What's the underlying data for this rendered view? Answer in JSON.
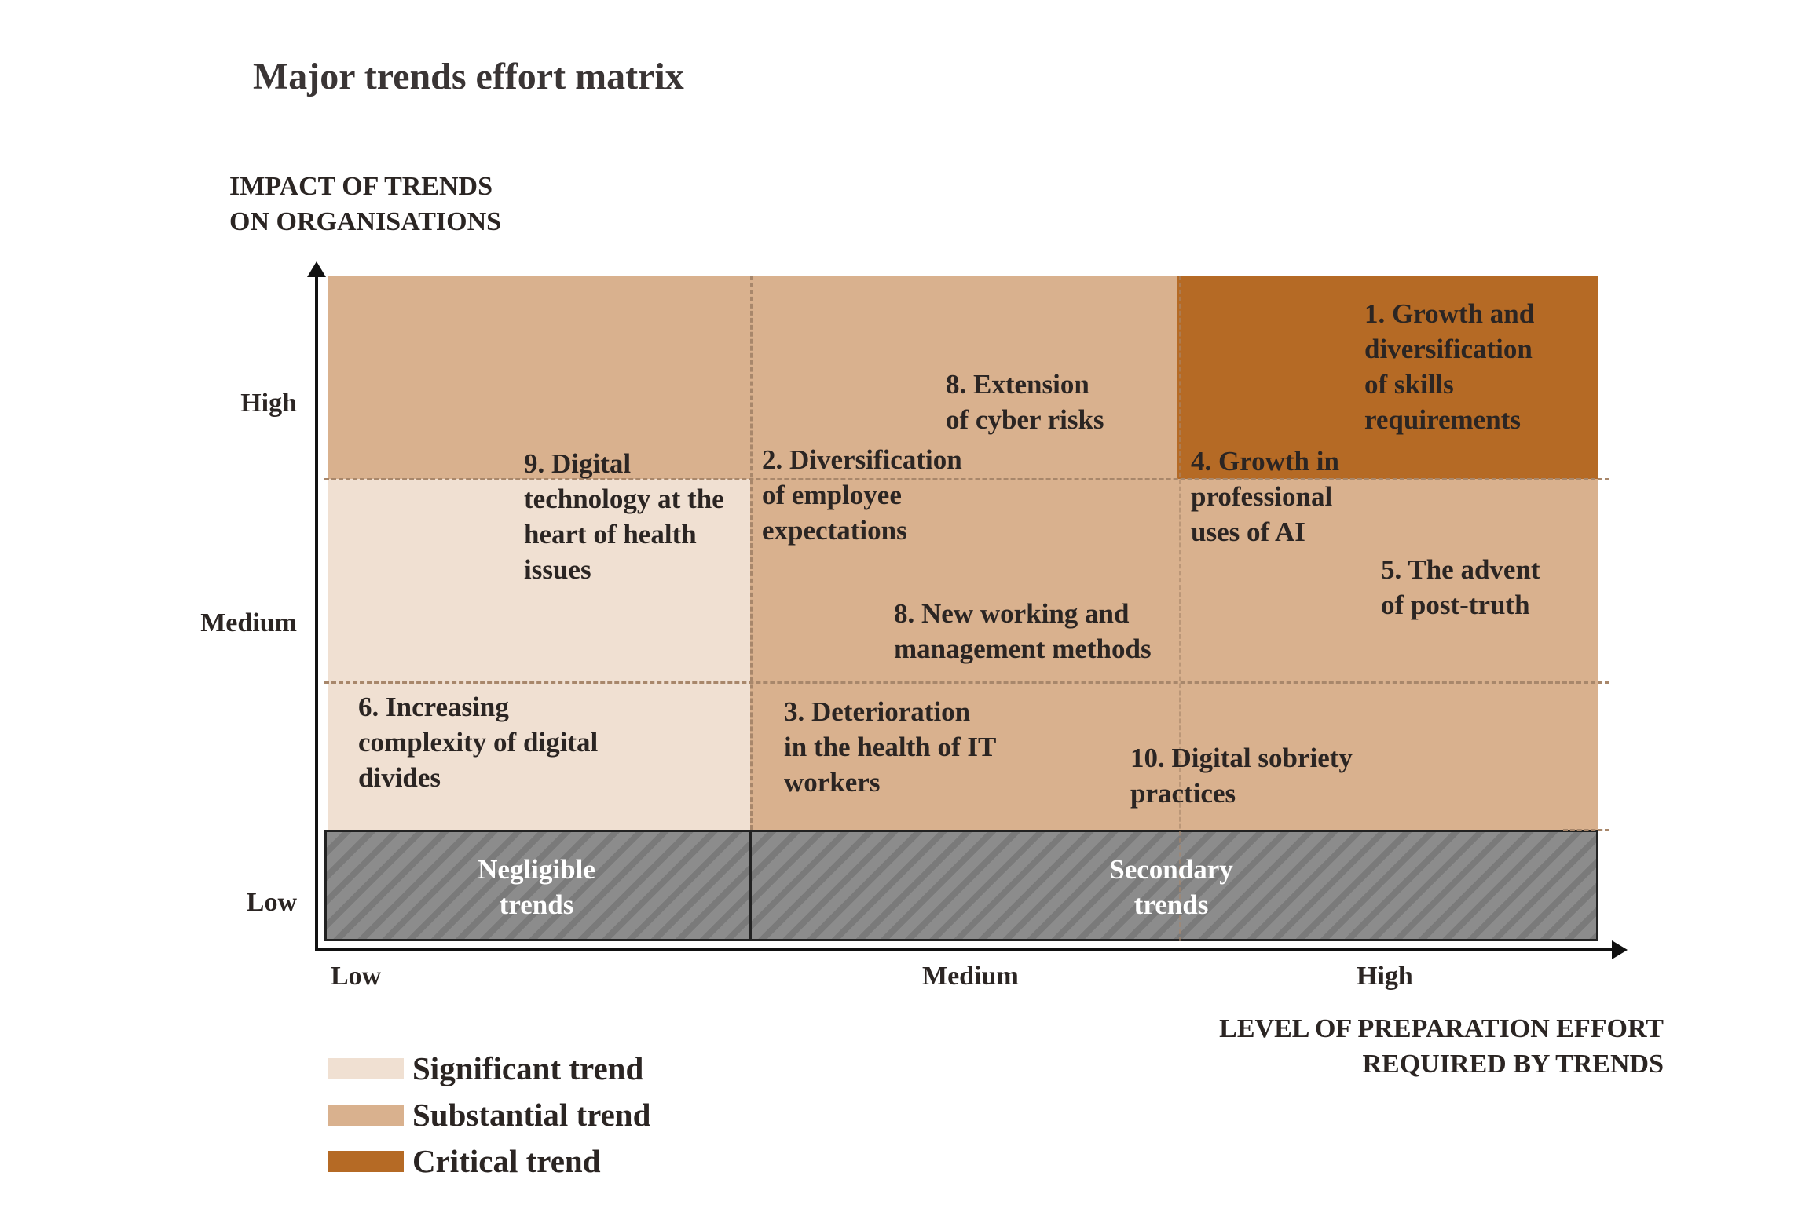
{
  "title": "Major trends effort matrix",
  "y_axis": {
    "title": "IMPACT OF TRENDS\nON ORGANISATIONS",
    "ticks": [
      "High",
      "Medium",
      "Low"
    ]
  },
  "x_axis": {
    "title": "LEVEL OF PREPARATION EFFORT\nREQUIRED BY TRENDS",
    "ticks": [
      "Low",
      "Medium",
      "High"
    ]
  },
  "zones": {
    "negligible": "Negligible\ntrends",
    "secondary": "Secondary\ntrends"
  },
  "trends": {
    "t1": "1. Growth and\ndiversification\nof skills\nrequirements",
    "t8a": "8. Extension\nof cyber risks",
    "t9": "9. Digital\ntechnology at the\nheart of health\nissues",
    "t2": "2. Diversification\nof employee\nexpectations",
    "t4": "4. Growth in\nprofessional\nuses of AI",
    "t5": "5. The advent\nof post-truth",
    "t8b": "8. New working and\nmanagement methods",
    "t6": "6. Increasing\ncomplexity of digital\ndivides",
    "t3": "3. Deterioration\nin the health of IT\nworkers",
    "t10": "10. Digital sobriety\npractices"
  },
  "legend": [
    {
      "label": "Significant trend",
      "color": "#f0e0d2"
    },
    {
      "label": "Substantial trend",
      "color": "#d9b18e"
    },
    {
      "label": "Critical trend",
      "color": "#b56a25"
    }
  ]
}
